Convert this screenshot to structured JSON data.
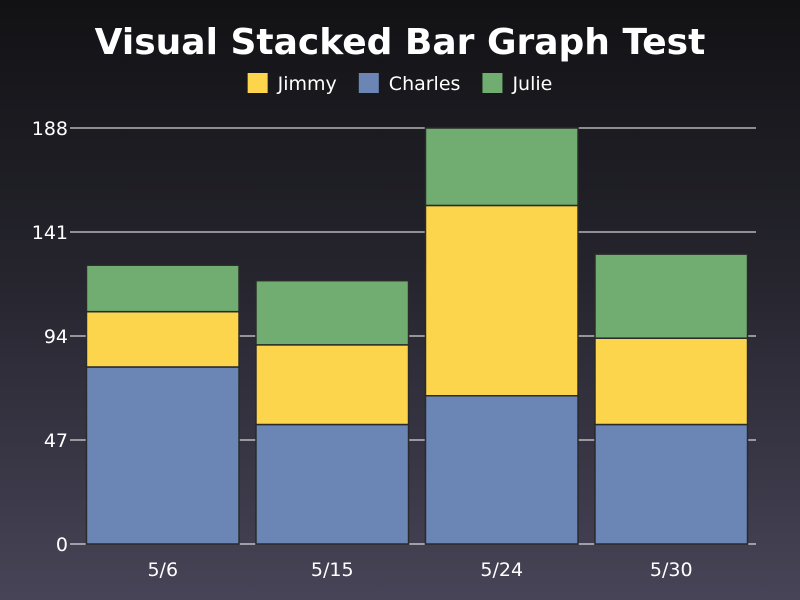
{
  "chart_data": {
    "type": "bar",
    "stacked": true,
    "title": "Visual Stacked Bar Graph Test",
    "xlabel": "",
    "ylabel": "",
    "categories": [
      "5/6",
      "5/15",
      "5/24",
      "5/30"
    ],
    "series": [
      {
        "name": "Charles",
        "color": "#6b86b4",
        "values": [
          80,
          54,
          67,
          54
        ]
      },
      {
        "name": "Jimmy",
        "color": "#fdd54c",
        "values": [
          25,
          36,
          86,
          39
        ]
      },
      {
        "name": "Julie",
        "color": "#71ad70",
        "values": [
          21,
          29,
          35,
          38
        ]
      }
    ],
    "legend_order": [
      "Jimmy",
      "Charles",
      "Julie"
    ],
    "legend_position": "top",
    "ylim": [
      0,
      188
    ],
    "yticks": [
      "0",
      "47",
      "94",
      "141",
      "188"
    ],
    "grid": true
  }
}
